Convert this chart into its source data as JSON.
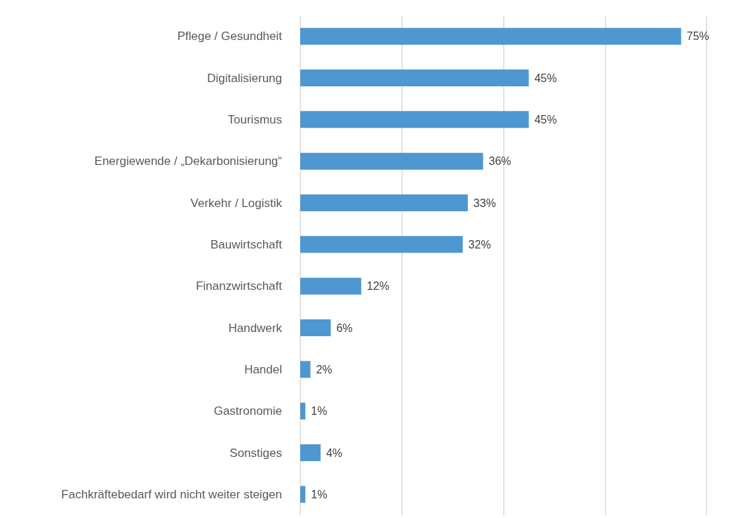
{
  "chart_data": {
    "type": "bar",
    "orientation": "horizontal",
    "categories": [
      "Pflege / Gesundheit",
      "Digitalisierung",
      "Tourismus",
      "Energiewende / „Dekarbonisierung“",
      "Verkehr / Logistik",
      "Bauwirtschaft",
      "Finanzwirtschaft",
      "Handwerk",
      "Handel",
      "Gastronomie",
      "Sonstiges",
      "Fachkräftebedarf wird nicht weiter steigen"
    ],
    "values": [
      75,
      45,
      45,
      36,
      33,
      32,
      12,
      6,
      2,
      1,
      4,
      1
    ],
    "value_labels": [
      "75%",
      "45%",
      "45%",
      "36%",
      "33%",
      "32%",
      "12%",
      "6%",
      "2%",
      "1%",
      "4%",
      "1%"
    ],
    "color": "#4f97d1",
    "xlim": [
      0,
      80
    ],
    "xticks": [
      {
        "value": 0,
        "label": null
      },
      {
        "value": 20,
        "label": null
      },
      {
        "value": 40,
        "label": null
      },
      {
        "value": 60,
        "label": null
      },
      {
        "value": 80,
        "label": null
      }
    ],
    "grid": "x",
    "tick_labels": "y"
  }
}
